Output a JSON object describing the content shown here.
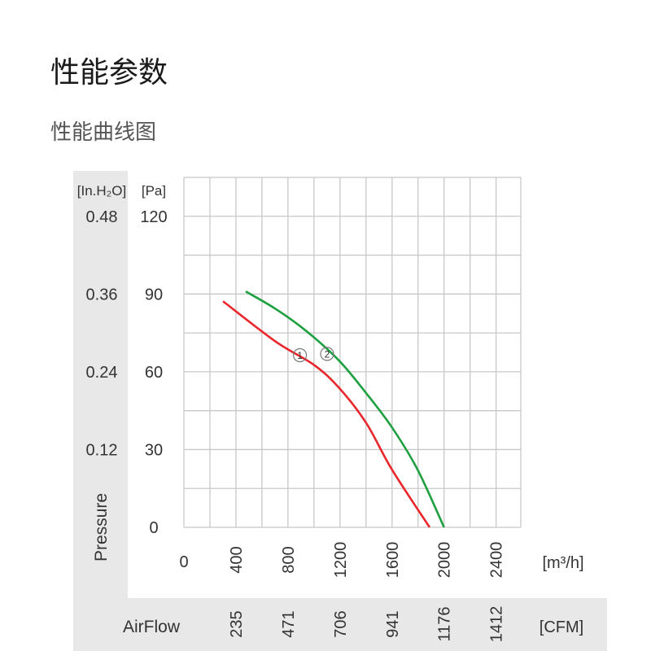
{
  "page": {
    "title": "性能参数",
    "subtitle": "性能曲线图"
  },
  "chart_data": {
    "type": "line",
    "title": "",
    "xlabel": "AirFlow",
    "ylabel": "Pressure",
    "x_unit": "[m³/h]",
    "x_unit_secondary": "[CFM]",
    "y_unit": "[Pa]",
    "y_unit_secondary": "[In.H₂O]",
    "xlim": [
      0,
      2590
    ],
    "ylim": [
      0,
      135
    ],
    "x_ticks": [
      0,
      400,
      800,
      1200,
      1600,
      2000,
      2400
    ],
    "x_tick_labels": [
      "0",
      "400",
      "800",
      "1200",
      "1600",
      "2000",
      "2400"
    ],
    "x_secondary_tick_labels": [
      "235",
      "471",
      "706",
      "941",
      "1176",
      "1412"
    ],
    "y_ticks": [
      0,
      30,
      60,
      90,
      120
    ],
    "y_tick_labels": [
      "0",
      "30",
      "60",
      "90",
      "120"
    ],
    "y_secondary_tick_labels": [
      "",
      "0.12",
      "0.24",
      "0.36",
      "0.48"
    ],
    "grid": true,
    "x_grid_step": 200,
    "y_grid_step": 15,
    "series": [
      {
        "name": "1",
        "color": "#e8262b",
        "x": [
          301,
          707,
          999,
          1193,
          1402,
          1599,
          1889
        ],
        "y": [
          87.2,
          71.6,
          62.7,
          53.8,
          40.2,
          22.3,
          0
        ],
        "marker": {
          "label": "1",
          "x": 892,
          "y": 66.4
        }
      },
      {
        "name": "2",
        "color": "#1fa040",
        "x": [
          475,
          707,
          939,
          1193,
          1402,
          1599,
          1796,
          2000
        ],
        "y": [
          91,
          84.2,
          75.8,
          64.3,
          51.7,
          38.6,
          22.3,
          0
        ],
        "marker": {
          "label": "2",
          "x": 1101,
          "y": 66.9
        }
      }
    ],
    "colors": {
      "band": "#e8e8e8",
      "grid": "#c8c8c8"
    }
  }
}
